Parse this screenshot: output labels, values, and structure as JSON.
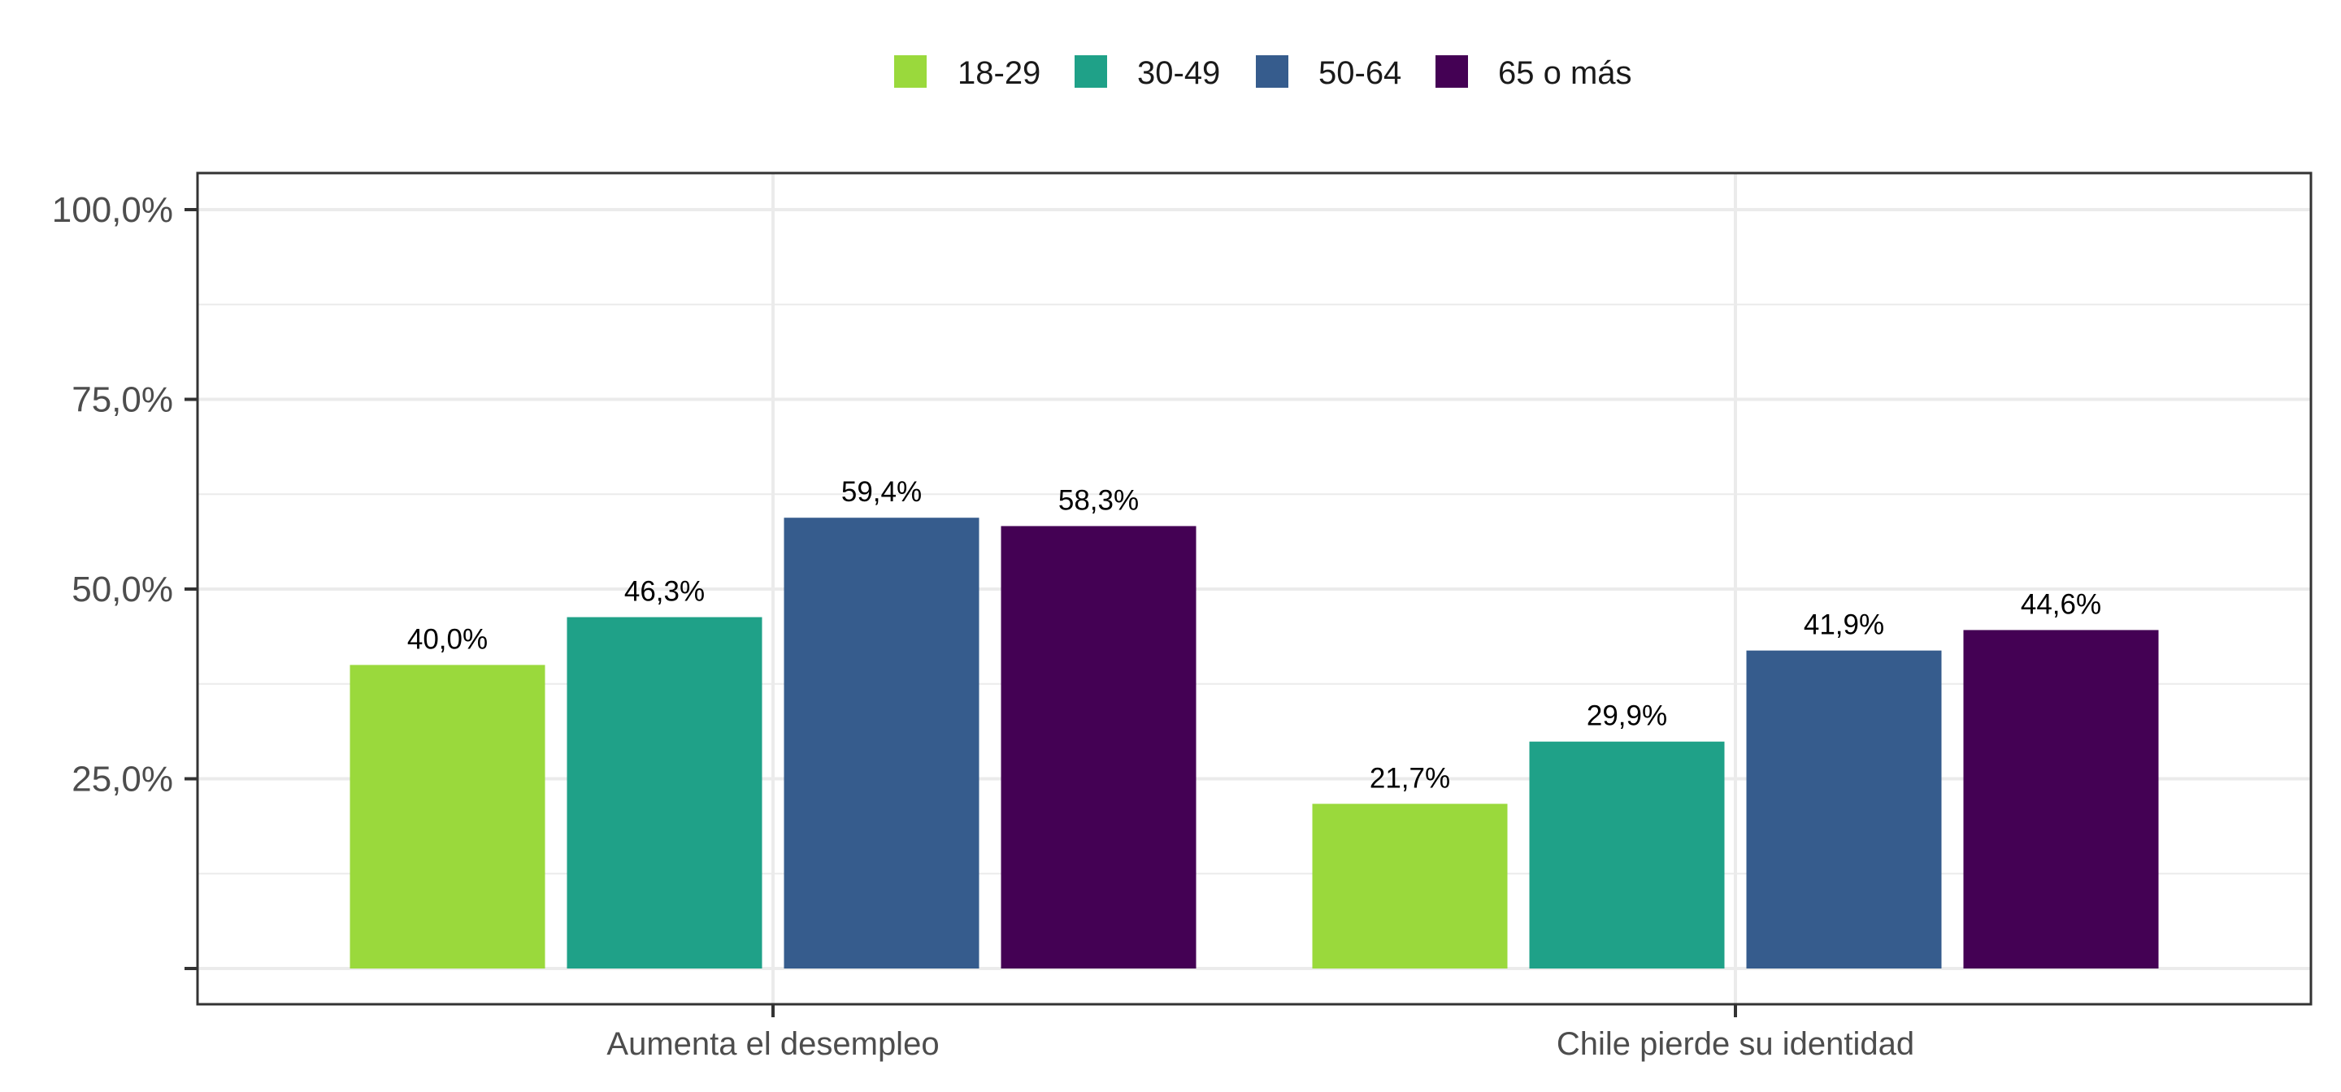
{
  "chart_data": {
    "type": "bar",
    "categories": [
      "Aumenta el desempleo",
      "Chile pierde su identidad"
    ],
    "series": [
      {
        "name": "18-29",
        "color": "#9ad93c",
        "values": [
          40.0,
          21.7
        ],
        "labels": [
          "40,0%",
          "21,7%"
        ]
      },
      {
        "name": "30-49",
        "color": "#1fa188",
        "values": [
          46.3,
          29.9
        ],
        "labels": [
          "46,3%",
          "29,9%"
        ]
      },
      {
        "name": "50-64",
        "color": "#365c8d",
        "values": [
          59.4,
          41.9
        ],
        "labels": [
          "59,4%",
          "41,9%"
        ]
      },
      {
        "name": "65 o más",
        "color": "#440154",
        "values": [
          58.3,
          44.6
        ],
        "labels": [
          "58,3%",
          "44,6%"
        ]
      }
    ],
    "yticks": [
      {
        "value": 0,
        "label": ""
      },
      {
        "value": 25,
        "label": "25,0%"
      },
      {
        "value": 50,
        "label": "50,0%"
      },
      {
        "value": 75,
        "label": "75,0%"
      },
      {
        "value": 100,
        "label": "100,0%"
      }
    ],
    "ylim": [
      0,
      100
    ],
    "title": "",
    "xlabel": "",
    "ylabel": "",
    "grid": true,
    "legend_position": "top"
  }
}
